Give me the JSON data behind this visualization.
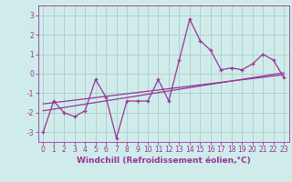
{
  "xlabel": "Windchill (Refroidissement éolien,°C)",
  "bg_color": "#d0ecea",
  "line_color": "#993399",
  "grid_color": "#aacccc",
  "xlim": [
    -0.5,
    23.5
  ],
  "ylim": [
    -3.5,
    3.5
  ],
  "yticks": [
    -3,
    -2,
    -1,
    0,
    1,
    2,
    3
  ],
  "xticks": [
    0,
    1,
    2,
    3,
    4,
    5,
    6,
    7,
    8,
    9,
    10,
    11,
    12,
    13,
    14,
    15,
    16,
    17,
    18,
    19,
    20,
    21,
    22,
    23
  ],
  "series1_x": [
    0,
    1,
    2,
    3,
    4,
    5,
    6,
    7,
    8,
    9,
    10,
    11,
    12,
    13,
    14,
    15,
    16,
    17,
    18,
    19,
    20,
    21,
    22,
    23
  ],
  "series1_y": [
    -3.0,
    -1.4,
    -2.0,
    -2.2,
    -1.9,
    -0.3,
    -1.2,
    -3.3,
    -1.4,
    -1.4,
    -1.4,
    -0.3,
    -1.4,
    0.7,
    2.8,
    1.7,
    1.2,
    0.2,
    0.3,
    0.2,
    0.5,
    1.0,
    0.7,
    -0.2
  ],
  "series2_x": [
    0,
    23
  ],
  "series2_y": [
    -1.9,
    0.05
  ],
  "series3_x": [
    0,
    23
  ],
  "series3_y": [
    -1.55,
    -0.05
  ],
  "ticklabel_fontsize": 5.5,
  "xlabel_fontsize": 6.5
}
